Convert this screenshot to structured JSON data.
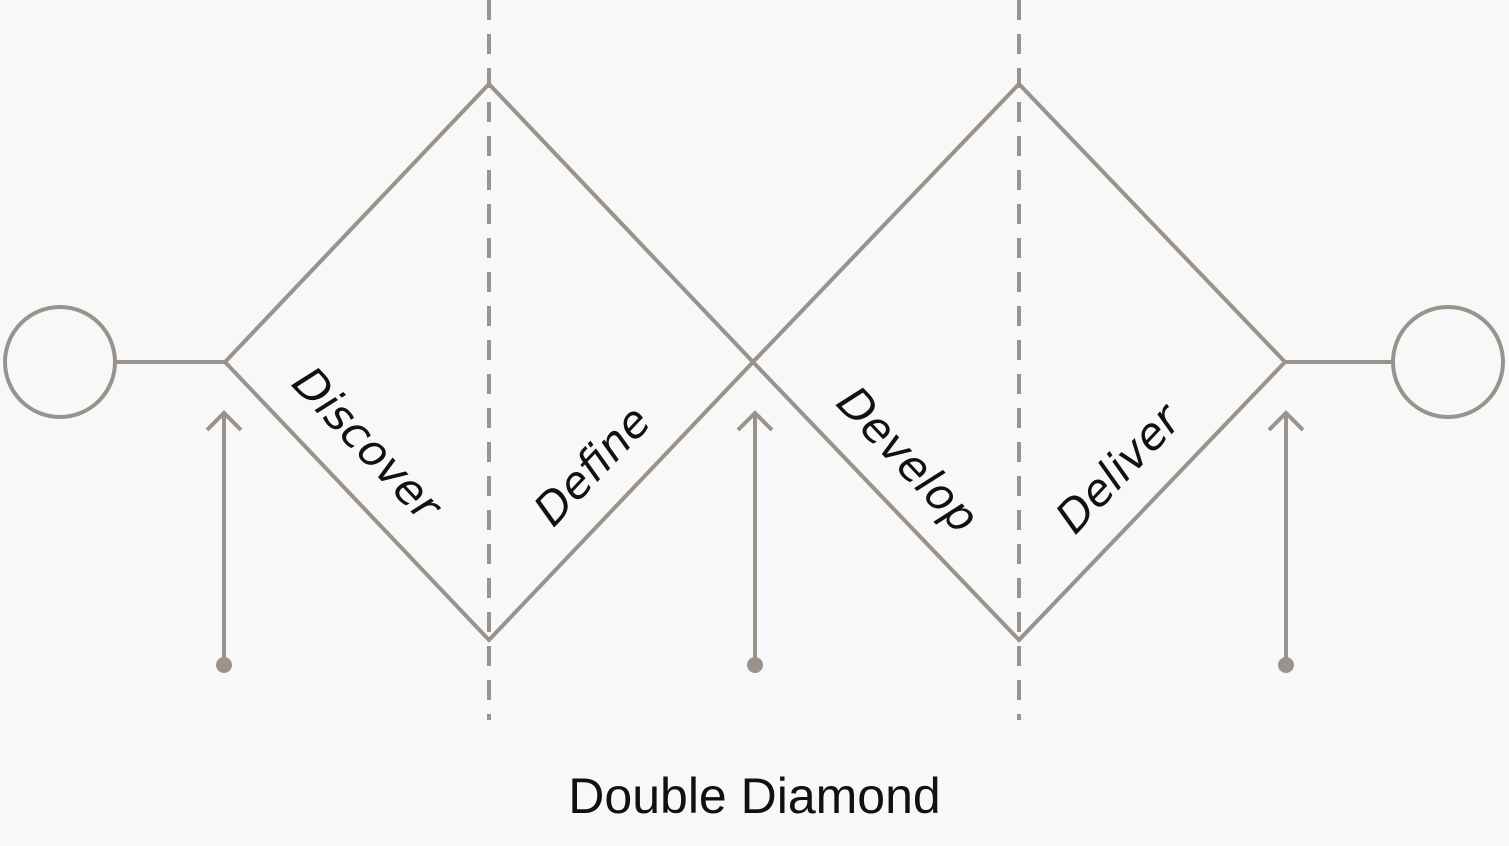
{
  "diagram": {
    "title": "Double Diamond",
    "phases": [
      {
        "id": "discover",
        "label": "Discover"
      },
      {
        "id": "define",
        "label": "Define"
      },
      {
        "id": "develop",
        "label": "Develop"
      },
      {
        "id": "deliver",
        "label": "Deliver"
      }
    ],
    "colors": {
      "line": "#9a938b",
      "text": "#111111",
      "background": "#f8f8f8"
    }
  }
}
